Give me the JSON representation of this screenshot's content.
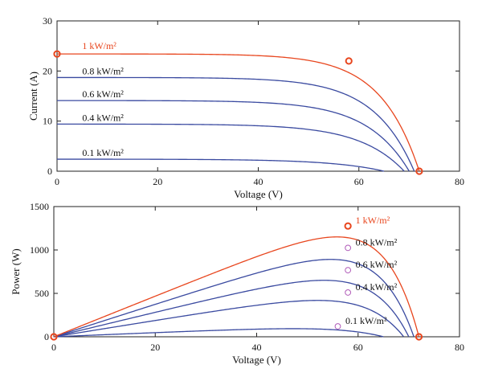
{
  "chart_data": [
    {
      "type": "line",
      "xlabel": "Voltage (V)",
      "ylabel": "Current (A)",
      "xlim": [
        0,
        80
      ],
      "ylim": [
        0,
        30
      ],
      "xticks": [
        0,
        20,
        40,
        60,
        80
      ],
      "yticks": [
        0,
        10,
        20,
        30
      ],
      "grid": false,
      "series": [
        {
          "name": "1 kW/m²",
          "color": "#e8461e",
          "isc": 23.4,
          "voc": 72.0,
          "shape": 18,
          "markers": [
            {
              "x": 0,
              "y": 23.4
            },
            {
              "x": 58,
              "y": 22.0
            },
            {
              "x": 72,
              "y": 0
            }
          ]
        },
        {
          "name": "0.8 kW/m²",
          "color": "#3a4aa0",
          "isc": 18.7,
          "voc": 71.0,
          "shape": 17
        },
        {
          "name": "0.6 kW/m²",
          "color": "#3a4aa0",
          "isc": 14.1,
          "voc": 70.0,
          "shape": 16
        },
        {
          "name": "0.4 kW/m²",
          "color": "#3a4aa0",
          "isc": 9.4,
          "voc": 69.0,
          "shape": 15
        },
        {
          "name": "0.1 kW/m²",
          "color": "#3a4aa0",
          "isc": 2.4,
          "voc": 65.0,
          "shape": 12
        }
      ]
    },
    {
      "type": "line",
      "xlabel": "Voltage (V)",
      "ylabel": "Power (W)",
      "xlim": [
        0,
        80
      ],
      "ylim": [
        0,
        1500
      ],
      "xticks": [
        0,
        20,
        40,
        60,
        80
      ],
      "yticks": [
        0,
        500,
        1000,
        1500
      ],
      "grid": false,
      "series": [
        {
          "name": "1 kW/m²",
          "color": "#e8461e",
          "isc": 23.4,
          "voc": 72.0,
          "shape": 18,
          "markers": [
            {
              "x": 0,
              "y": 0
            },
            {
              "x": 58,
              "y": 1276
            },
            {
              "x": 72,
              "y": 0
            }
          ]
        },
        {
          "name": "0.8 kW/m²",
          "color": "#3a4aa0",
          "isc": 18.7,
          "voc": 71.0,
          "shape": 17,
          "markers": [
            {
              "x": 58,
              "y": 1024
            }
          ]
        },
        {
          "name": "0.6 kW/m²",
          "color": "#3a4aa0",
          "isc": 14.1,
          "voc": 70.0,
          "shape": 16,
          "markers": [
            {
              "x": 58,
              "y": 767
            }
          ]
        },
        {
          "name": "0.4 kW/m²",
          "color": "#3a4aa0",
          "isc": 9.4,
          "voc": 69.0,
          "shape": 15,
          "markers": [
            {
              "x": 58,
              "y": 510
            }
          ]
        },
        {
          "name": "0.1 kW/m²",
          "color": "#3a4aa0",
          "isc": 2.4,
          "voc": 65.0,
          "shape": 12,
          "markers": [
            {
              "x": 56,
              "y": 120
            }
          ]
        }
      ]
    }
  ],
  "marker_colors": {
    "primary": "#e8461e",
    "secondary": "#b05ab8"
  }
}
